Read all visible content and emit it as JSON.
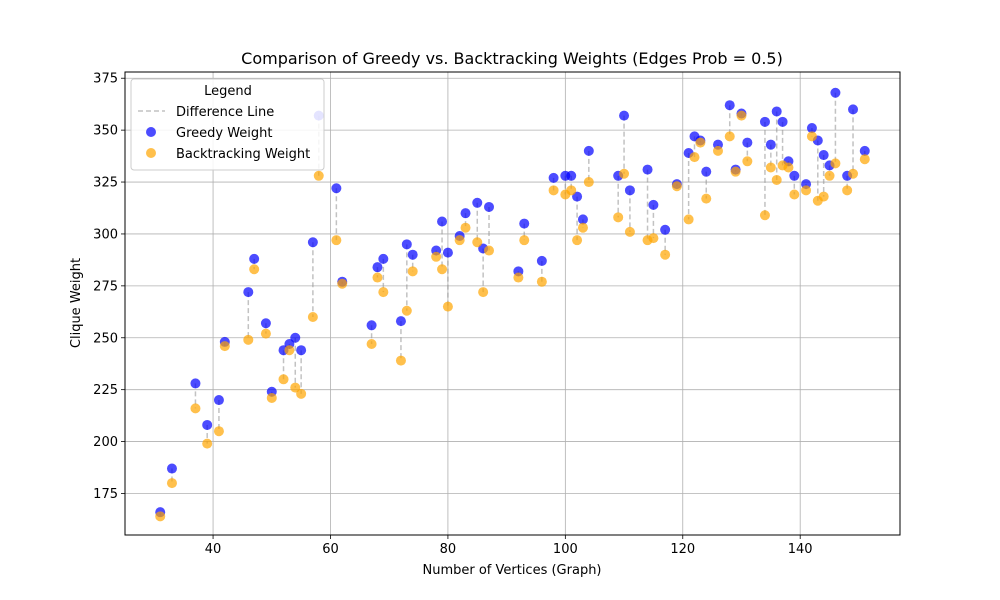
{
  "chart_data": {
    "type": "scatter",
    "title": "Comparison of Greedy vs. Backtracking Weights (Edges Prob = 0.5)",
    "xlabel": "Number of Vertices (Graph)",
    "ylabel": "Clique Weight",
    "xlim": [
      25,
      157
    ],
    "ylim": [
      155,
      378
    ],
    "xticks": [
      40,
      60,
      80,
      100,
      120,
      140
    ],
    "yticks": [
      175,
      200,
      225,
      250,
      275,
      300,
      325,
      350,
      375
    ],
    "grid": true,
    "legend": {
      "title": "Legend",
      "placement": "top-left",
      "entries": [
        "Difference Line",
        "Greedy Weight",
        "Backtracking Weight"
      ]
    },
    "colors": {
      "greedy": "#0000ff",
      "backtracking": "#ffa500",
      "difference": "#999999"
    },
    "x": [
      31,
      33,
      37,
      39,
      41,
      42,
      46,
      47,
      49,
      50,
      52,
      53,
      54,
      55,
      57,
      58,
      61,
      62,
      67,
      68,
      69,
      72,
      73,
      74,
      78,
      79,
      80,
      82,
      83,
      85,
      86,
      87,
      92,
      93,
      96,
      98,
      100,
      101,
      102,
      103,
      104,
      109,
      110,
      111,
      114,
      115,
      117,
      119,
      121,
      122,
      123,
      124,
      126,
      128,
      129,
      130,
      131,
      134,
      135,
      136,
      137,
      138,
      139,
      141,
      142,
      143,
      144,
      145,
      146,
      148,
      149,
      151
    ],
    "series": [
      {
        "name": "Greedy Weight",
        "values": [
          166,
          187,
          228,
          208,
          220,
          248,
          272,
          288,
          257,
          224,
          244,
          247,
          250,
          244,
          296,
          357,
          322,
          277,
          256,
          284,
          288,
          258,
          295,
          290,
          292,
          306,
          291,
          299,
          310,
          315,
          293,
          313,
          282,
          305,
          287,
          327,
          328,
          328,
          318,
          307,
          340,
          328,
          357,
          321,
          331,
          314,
          302,
          324,
          339,
          347,
          345,
          330,
          343,
          362,
          331,
          358,
          344,
          354,
          343,
          359,
          354,
          335,
          328,
          324,
          351,
          345,
          338,
          333,
          368,
          328,
          360,
          340
        ]
      },
      {
        "name": "Backtracking Weight",
        "values": [
          164,
          180,
          216,
          199,
          205,
          246,
          249,
          283,
          252,
          221,
          230,
          244,
          226,
          223,
          260,
          328,
          297,
          276,
          247,
          279,
          272,
          239,
          263,
          282,
          289,
          283,
          265,
          297,
          303,
          296,
          272,
          292,
          279,
          297,
          277,
          321,
          319,
          321,
          297,
          303,
          325,
          308,
          329,
          301,
          297,
          298,
          290,
          323,
          307,
          337,
          344,
          317,
          340,
          347,
          330,
          357,
          335,
          309,
          332,
          326,
          333,
          332,
          319,
          321,
          347,
          316,
          318,
          328,
          334,
          321,
          329,
          336
        ]
      }
    ]
  }
}
